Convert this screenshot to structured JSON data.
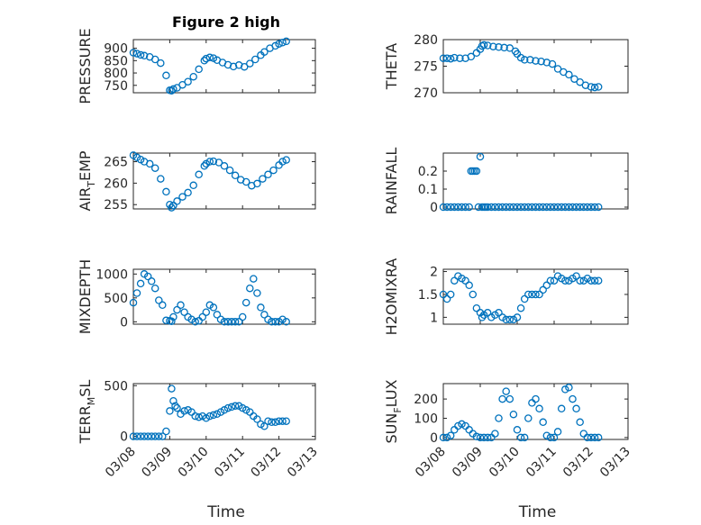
{
  "chart_data": {
    "type": "scatter",
    "title": "Figure 2 high",
    "color": "#0072BD",
    "x_tick_labels": [
      "03/08",
      "03/09",
      "03/10",
      "03/11",
      "03/12",
      "03/13"
    ],
    "x_domain": [
      0,
      5
    ],
    "subplots": [
      {
        "ylabel": "PRESSURE",
        "ylim": [
          720,
          935
        ],
        "yticks": [
          750,
          800,
          850,
          900
        ],
        "x": [
          0,
          0.1,
          0.2,
          0.3,
          0.45,
          0.6,
          0.75,
          0.9,
          1.0,
          1.05,
          1.1,
          1.2,
          1.35,
          1.5,
          1.65,
          1.8,
          1.95,
          2.0,
          2.1,
          2.2,
          2.3,
          2.45,
          2.6,
          2.75,
          2.9,
          3.05,
          3.2,
          3.35,
          3.5,
          3.6,
          3.75,
          3.9,
          4.0,
          4.1,
          4.2
        ],
        "y": [
          882,
          878,
          873,
          870,
          865,
          855,
          840,
          790,
          730,
          728,
          735,
          740,
          752,
          765,
          785,
          815,
          850,
          858,
          863,
          860,
          852,
          842,
          833,
          826,
          832,
          825,
          838,
          855,
          872,
          885,
          900,
          910,
          918,
          923,
          928
        ]
      },
      {
        "ylabel": "THETA",
        "ylim": [
          270,
          280
        ],
        "yticks": [
          270,
          275,
          280
        ],
        "x": [
          0,
          0.1,
          0.2,
          0.3,
          0.45,
          0.6,
          0.75,
          0.9,
          1.0,
          1.05,
          1.1,
          1.2,
          1.35,
          1.5,
          1.65,
          1.8,
          1.95,
          2.0,
          2.1,
          2.2,
          2.35,
          2.5,
          2.65,
          2.8,
          2.95,
          3.1,
          3.25,
          3.4,
          3.55,
          3.7,
          3.85,
          4.0,
          4.1,
          4.2
        ],
        "y": [
          276.5,
          276.5,
          276.4,
          276.6,
          276.5,
          276.5,
          276.8,
          277.5,
          278.2,
          278.8,
          279.0,
          278.9,
          278.7,
          278.6,
          278.5,
          278.4,
          277.8,
          277.3,
          276.6,
          276.2,
          276.2,
          276.0,
          275.9,
          275.7,
          275.4,
          274.5,
          273.9,
          273.4,
          272.6,
          272.0,
          271.4,
          271.1,
          271.0,
          271.1
        ]
      },
      {
        "ylabel": "AIR_TEMP",
        "ylim": [
          254,
          267
        ],
        "yticks": [
          255,
          260,
          265
        ],
        "x": [
          0,
          0.1,
          0.2,
          0.3,
          0.45,
          0.6,
          0.75,
          0.9,
          1.0,
          1.05,
          1.1,
          1.2,
          1.35,
          1.5,
          1.65,
          1.8,
          1.95,
          2.0,
          2.1,
          2.2,
          2.35,
          2.5,
          2.65,
          2.8,
          2.95,
          3.1,
          3.25,
          3.4,
          3.55,
          3.7,
          3.85,
          4.0,
          4.1,
          4.2
        ],
        "y": [
          266.5,
          266.0,
          265.5,
          265.0,
          264.5,
          263.5,
          261.0,
          258.0,
          255.0,
          254.3,
          254.8,
          255.8,
          256.8,
          257.8,
          259.5,
          262.0,
          264.0,
          264.5,
          265.0,
          265.1,
          264.8,
          264.0,
          263.0,
          261.8,
          260.8,
          260.3,
          259.4,
          259.9,
          261.0,
          262.0,
          263.0,
          264.2,
          265.0,
          265.4
        ]
      },
      {
        "ylabel": "RAINFALL",
        "ylim": [
          -0.01,
          0.3
        ],
        "yticks": [
          0,
          0.1,
          0.2
        ],
        "x": [
          0,
          0.1,
          0.2,
          0.3,
          0.4,
          0.5,
          0.6,
          0.7,
          0.75,
          0.8,
          0.85,
          0.9,
          0.95,
          1.0,
          1.05,
          1.1,
          1.15,
          1.2,
          1.3,
          1.4,
          1.5,
          1.6,
          1.7,
          1.8,
          1.9,
          2.0,
          2.1,
          2.2,
          2.3,
          2.4,
          2.5,
          2.6,
          2.7,
          2.8,
          2.9,
          3.0,
          3.1,
          3.2,
          3.3,
          3.4,
          3.5,
          3.6,
          3.7,
          3.8,
          3.9,
          4.0,
          4.1,
          4.2
        ],
        "y": [
          0,
          0,
          0,
          0,
          0,
          0,
          0,
          0,
          0.2,
          0.2,
          0.2,
          0.2,
          0,
          0.28,
          0,
          0,
          0,
          0,
          0,
          0,
          0,
          0,
          0,
          0,
          0,
          0,
          0,
          0,
          0,
          0,
          0,
          0,
          0,
          0,
          0,
          0,
          0,
          0,
          0,
          0,
          0,
          0,
          0,
          0,
          0,
          0,
          0,
          0
        ]
      },
      {
        "ylabel": "MIXDEPTH",
        "ylim": [
          -50,
          1100
        ],
        "yticks": [
          0,
          500,
          1000
        ],
        "x": [
          0,
          0.1,
          0.2,
          0.3,
          0.4,
          0.5,
          0.6,
          0.7,
          0.8,
          0.9,
          1.0,
          1.05,
          1.1,
          1.2,
          1.3,
          1.4,
          1.5,
          1.6,
          1.7,
          1.8,
          1.9,
          2.0,
          2.1,
          2.2,
          2.3,
          2.4,
          2.5,
          2.6,
          2.7,
          2.8,
          2.9,
          3.0,
          3.1,
          3.2,
          3.3,
          3.4,
          3.5,
          3.6,
          3.7,
          3.8,
          3.9,
          4.0,
          4.1,
          4.2
        ],
        "y": [
          400,
          600,
          800,
          1000,
          950,
          850,
          700,
          450,
          350,
          30,
          20,
          10,
          100,
          250,
          350,
          200,
          100,
          50,
          0,
          20,
          100,
          200,
          350,
          300,
          150,
          50,
          0,
          0,
          0,
          0,
          0,
          100,
          400,
          700,
          900,
          600,
          300,
          150,
          50,
          0,
          0,
          0,
          50,
          0
        ]
      },
      {
        "ylabel": "H2OMIXRA",
        "ylim": [
          0.85,
          2.05
        ],
        "yticks": [
          1,
          1.5,
          2
        ],
        "x": [
          0,
          0.1,
          0.2,
          0.3,
          0.4,
          0.5,
          0.6,
          0.7,
          0.8,
          0.9,
          1.0,
          1.05,
          1.1,
          1.2,
          1.3,
          1.4,
          1.5,
          1.6,
          1.7,
          1.8,
          1.9,
          2.0,
          2.1,
          2.2,
          2.3,
          2.4,
          2.5,
          2.6,
          2.7,
          2.8,
          2.9,
          3.0,
          3.1,
          3.2,
          3.3,
          3.4,
          3.5,
          3.6,
          3.7,
          3.8,
          3.9,
          4.0,
          4.1,
          4.2
        ],
        "y": [
          1.5,
          1.4,
          1.5,
          1.8,
          1.9,
          1.85,
          1.8,
          1.7,
          1.5,
          1.2,
          1.1,
          1.0,
          1.05,
          1.1,
          1.0,
          1.05,
          1.1,
          1.0,
          0.95,
          0.95,
          0.95,
          1.0,
          1.2,
          1.4,
          1.5,
          1.5,
          1.5,
          1.5,
          1.6,
          1.7,
          1.8,
          1.8,
          1.9,
          1.85,
          1.8,
          1.8,
          1.85,
          1.9,
          1.8,
          1.8,
          1.85,
          1.8,
          1.8,
          1.8
        ]
      },
      {
        "ylabel": "TERR_MSL",
        "ylim": [
          -30,
          520
        ],
        "yticks": [
          0,
          500
        ],
        "x": [
          0,
          0.1,
          0.2,
          0.3,
          0.4,
          0.5,
          0.6,
          0.7,
          0.8,
          0.9,
          1.0,
          1.05,
          1.1,
          1.15,
          1.2,
          1.3,
          1.4,
          1.5,
          1.6,
          1.7,
          1.8,
          1.9,
          2.0,
          2.1,
          2.2,
          2.3,
          2.4,
          2.5,
          2.6,
          2.7,
          2.8,
          2.9,
          3.0,
          3.1,
          3.2,
          3.3,
          3.4,
          3.5,
          3.6,
          3.7,
          3.8,
          3.9,
          4.0,
          4.1,
          4.2
        ],
        "y": [
          0,
          0,
          0,
          0,
          0,
          0,
          0,
          0,
          0,
          50,
          250,
          470,
          350,
          300,
          280,
          220,
          250,
          260,
          240,
          200,
          190,
          200,
          180,
          200,
          210,
          220,
          240,
          260,
          280,
          290,
          300,
          300,
          280,
          260,
          240,
          200,
          170,
          120,
          100,
          150,
          140,
          140,
          150,
          150,
          150
        ]
      },
      {
        "ylabel": "SUN_FLUX",
        "ylim": [
          -10,
          280
        ],
        "yticks": [
          0,
          100,
          200
        ],
        "x": [
          0,
          0.1,
          0.2,
          0.3,
          0.4,
          0.5,
          0.6,
          0.7,
          0.8,
          0.9,
          1.0,
          1.1,
          1.2,
          1.3,
          1.4,
          1.5,
          1.6,
          1.7,
          1.8,
          1.9,
          2.0,
          2.1,
          2.2,
          2.3,
          2.4,
          2.5,
          2.6,
          2.7,
          2.8,
          2.9,
          3.0,
          3.1,
          3.2,
          3.3,
          3.4,
          3.5,
          3.6,
          3.7,
          3.8,
          3.9,
          4.0,
          4.1,
          4.2
        ],
        "y": [
          0,
          0,
          10,
          40,
          60,
          70,
          60,
          40,
          20,
          5,
          0,
          0,
          0,
          0,
          20,
          100,
          200,
          240,
          200,
          120,
          40,
          0,
          0,
          100,
          180,
          200,
          150,
          80,
          10,
          0,
          0,
          30,
          150,
          250,
          260,
          200,
          150,
          80,
          20,
          0,
          0,
          0,
          0
        ]
      }
    ]
  }
}
